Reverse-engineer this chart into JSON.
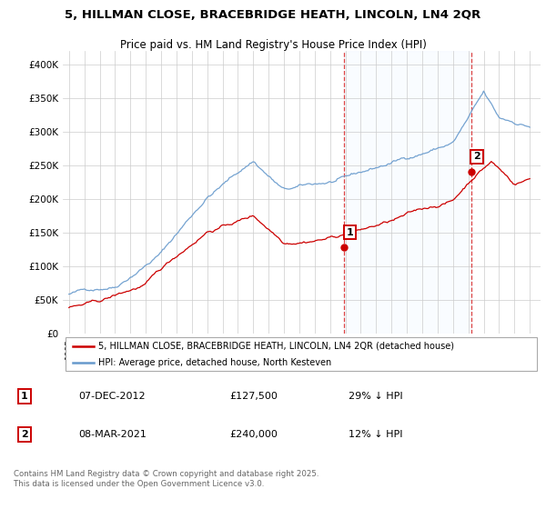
{
  "title1": "5, HILLMAN CLOSE, BRACEBRIDGE HEATH, LINCOLN, LN4 2QR",
  "title2": "Price paid vs. HM Land Registry's House Price Index (HPI)",
  "legend1": "5, HILLMAN CLOSE, BRACEBRIDGE HEATH, LINCOLN, LN4 2QR (detached house)",
  "legend2": "HPI: Average price, detached house, North Kesteven",
  "annotation1_label": "1",
  "annotation1_date": "07-DEC-2012",
  "annotation1_price": "£127,500",
  "annotation1_hpi": "29% ↓ HPI",
  "annotation2_label": "2",
  "annotation2_date": "08-MAR-2021",
  "annotation2_price": "£240,000",
  "annotation2_hpi": "12% ↓ HPI",
  "footer": "Contains HM Land Registry data © Crown copyright and database right 2025.\nThis data is licensed under the Open Government Licence v3.0.",
  "color_red": "#cc0000",
  "color_blue": "#6699cc",
  "color_vline": "#dd4444",
  "color_bg_shade": "#ddeeff",
  "ylim": [
    0,
    420000
  ],
  "yticks": [
    0,
    50000,
    100000,
    150000,
    200000,
    250000,
    300000,
    350000,
    400000
  ],
  "ytick_labels": [
    "£0",
    "£50K",
    "£100K",
    "£150K",
    "£200K",
    "£250K",
    "£300K",
    "£350K",
    "£400K"
  ],
  "sale1_year": 2012.92,
  "sale2_year": 2021.18,
  "sale1_price": 127500,
  "sale2_price": 240000
}
